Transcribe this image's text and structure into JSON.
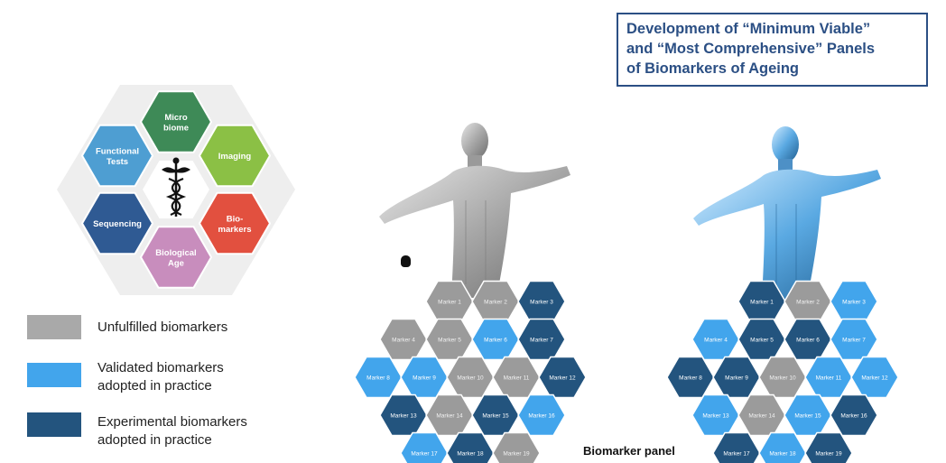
{
  "title": {
    "lines": [
      "Development of “Minimum Viable”",
      "and “Most Comprehensive” Panels",
      "of Biomarkers of Ageing"
    ]
  },
  "colors": {
    "gray": "#9b9b9b",
    "light_blue": "#42a5ec",
    "dark_blue": "#23547e",
    "title_blue": "#2b4f84"
  },
  "categories": [
    {
      "lines": [
        "Micro",
        "biome"
      ],
      "color": "#3e8a57"
    },
    {
      "lines": [
        "Imaging"
      ],
      "color": "#8bc045"
    },
    {
      "lines": [
        "Bio-",
        "markers"
      ],
      "color": "#e2503f"
    },
    {
      "lines": [
        "Biological",
        "Age"
      ],
      "color": "#c88dbd"
    },
    {
      "lines": [
        "Sequencing"
      ],
      "color": "#2f5a93"
    },
    {
      "lines": [
        "Functional",
        "Tests"
      ],
      "color": "#4e9ed2"
    }
  ],
  "legend": [
    {
      "lines": [
        "Unfulfilled biomarkers"
      ],
      "color": "#a9a9a9"
    },
    {
      "lines": [
        "Validated biomarkers",
        "adopted in practice"
      ],
      "color": "#42a5ec"
    },
    {
      "lines": [
        "Experimental biomarkers",
        "adopted in practice"
      ],
      "color": "#23547e"
    }
  ],
  "panel_label": "Biomarker panel",
  "panels": [
    {
      "markers": [
        {
          "label": "Marker 1",
          "status": "gray"
        },
        {
          "label": "Marker 2",
          "status": "gray"
        },
        {
          "label": "Marker 3",
          "status": "dark"
        },
        {
          "label": "Marker 4",
          "status": "gray"
        },
        {
          "label": "Marker 5",
          "status": "gray"
        },
        {
          "label": "Marker 6",
          "status": "light"
        },
        {
          "label": "Marker 7",
          "status": "dark"
        },
        {
          "label": "Marker 8",
          "status": "light"
        },
        {
          "label": "Marker 9",
          "status": "light"
        },
        {
          "label": "Marker 10",
          "status": "gray"
        },
        {
          "label": "Marker 11",
          "status": "gray"
        },
        {
          "label": "Marker 12",
          "status": "dark"
        },
        {
          "label": "Marker 13",
          "status": "dark"
        },
        {
          "label": "Marker 14",
          "status": "gray"
        },
        {
          "label": "Marker 15",
          "status": "dark"
        },
        {
          "label": "Marker 16",
          "status": "light"
        },
        {
          "label": "Marker 17",
          "status": "light"
        },
        {
          "label": "Marker 18",
          "status": "dark"
        },
        {
          "label": "Marker 19",
          "status": "gray"
        }
      ]
    },
    {
      "markers": [
        {
          "label": "Marker 1",
          "status": "dark"
        },
        {
          "label": "Marker 2",
          "status": "gray"
        },
        {
          "label": "Marker 3",
          "status": "light"
        },
        {
          "label": "Marker 4",
          "status": "light"
        },
        {
          "label": "Marker 5",
          "status": "dark"
        },
        {
          "label": "Marker 6",
          "status": "dark"
        },
        {
          "label": "Marker 7",
          "status": "light"
        },
        {
          "label": "Marker 8",
          "status": "dark"
        },
        {
          "label": "Marker 9",
          "status": "dark"
        },
        {
          "label": "Marker 10",
          "status": "gray"
        },
        {
          "label": "Marker 11",
          "status": "light"
        },
        {
          "label": "Marker 12",
          "status": "light"
        },
        {
          "label": "Marker 13",
          "status": "light"
        },
        {
          "label": "Marker 14",
          "status": "gray"
        },
        {
          "label": "Marker 15",
          "status": "light"
        },
        {
          "label": "Marker 16",
          "status": "dark"
        },
        {
          "label": "Marker 17",
          "status": "dark"
        },
        {
          "label": "Marker 18",
          "status": "light"
        },
        {
          "label": "Marker 19",
          "status": "dark"
        }
      ]
    }
  ]
}
